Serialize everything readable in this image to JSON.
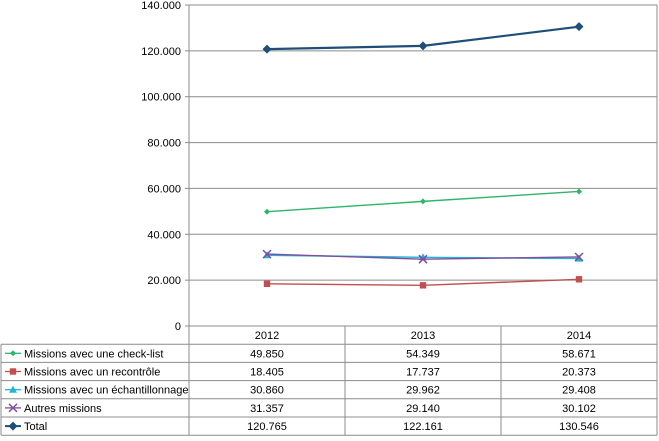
{
  "chart_data": {
    "type": "line",
    "categories": [
      "2012",
      "2013",
      "2014"
    ],
    "ylim": [
      0,
      140000
    ],
    "yticks": [
      0,
      20000,
      40000,
      60000,
      80000,
      100000,
      120000,
      140000
    ],
    "ytick_labels": [
      "0",
      "20.000",
      "40.000",
      "60.000",
      "80.000",
      "100.000",
      "120.000",
      "140.000"
    ],
    "grid": "horizontal",
    "legend": "data-table-bottom",
    "series": [
      {
        "name": "Missions avec une check-list",
        "values": [
          49850,
          54349,
          58671
        ],
        "labels": [
          "49.850",
          "54.349",
          "58.671"
        ],
        "color": "#2DB56A",
        "marker": "diamond-small"
      },
      {
        "name": "Missions avec un recontrôle",
        "values": [
          18405,
          17737,
          20373
        ],
        "labels": [
          "18.405",
          "17.737",
          "20.373"
        ],
        "color": "#C0504D",
        "marker": "square"
      },
      {
        "name": "Missions avec un échantillonnage",
        "values": [
          30860,
          29962,
          29408
        ],
        "labels": [
          "30.860",
          "29.962",
          "29.408"
        ],
        "color": "#23B3D9",
        "marker": "triangle"
      },
      {
        "name": "Autres missions",
        "values": [
          31357,
          29140,
          30102
        ],
        "labels": [
          "31.357",
          "29.140",
          "30.102"
        ],
        "color": "#7E4F9E",
        "marker": "x"
      },
      {
        "name": "Total",
        "values": [
          120765,
          122161,
          130546
        ],
        "labels": [
          "120.765",
          "122.161",
          "130.546"
        ],
        "color": "#1F4E79",
        "marker": "diamond"
      }
    ]
  }
}
